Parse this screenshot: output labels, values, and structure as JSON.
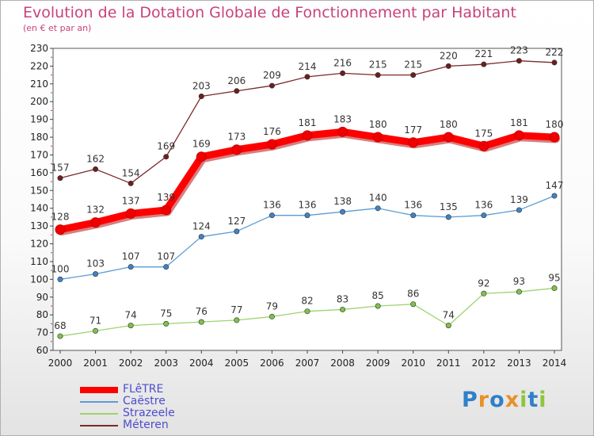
{
  "chart_data": {
    "type": "line",
    "title": "Evolution de la Dotation Globale de Fonctionnement par Habitant",
    "subtitle": "(en € et par an)",
    "xlabel": "",
    "ylabel": "",
    "ylim": [
      60,
      230
    ],
    "ytick_step": 10,
    "grid": false,
    "legend_position": "bottom-left",
    "x": [
      2000,
      2001,
      2002,
      2003,
      2004,
      2005,
      2006,
      2007,
      2008,
      2009,
      2010,
      2011,
      2012,
      2013,
      2014
    ],
    "series": [
      {
        "name": "Méteren",
        "color": "#7a2a2a",
        "marker": "#6e1e1e",
        "style": "thin",
        "values": [
          157,
          162,
          154,
          169,
          203,
          206,
          209,
          214,
          216,
          215,
          215,
          220,
          221,
          223,
          222
        ]
      },
      {
        "name": "Strazeele",
        "color": "#9ed36e",
        "marker": "#7fc24a",
        "style": "thin",
        "values": [
          68,
          71,
          74,
          75,
          76,
          77,
          79,
          82,
          83,
          85,
          86,
          74,
          92,
          93,
          95
        ]
      },
      {
        "name": "Caëstre",
        "color": "#5b9bd5",
        "marker": "#3f83c4",
        "style": "thin",
        "values": [
          100,
          103,
          107,
          107,
          124,
          127,
          136,
          136,
          138,
          140,
          136,
          135,
          136,
          139,
          147
        ]
      },
      {
        "name": "FLêTRE",
        "color": "#ff0000",
        "marker": "#ee0000",
        "style": "thick",
        "values": [
          128,
          132,
          137,
          139,
          169,
          173,
          176,
          181,
          183,
          180,
          177,
          180,
          175,
          181,
          180
        ]
      }
    ]
  },
  "legend": {
    "items": [
      {
        "label": "FLêTRE",
        "color": "#ff0000",
        "text_color": "#4d4dd1",
        "thick": true
      },
      {
        "label": "Caëstre",
        "color": "#5b9bd5",
        "text_color": "#4d4dd1",
        "thick": false
      },
      {
        "label": "Strazeele",
        "color": "#9ed36e",
        "text_color": "#4d4dd1",
        "thick": false
      },
      {
        "label": "Méteren",
        "color": "#7a2a2a",
        "text_color": "#4d4dd1",
        "thick": false
      }
    ]
  },
  "logo": {
    "letters": [
      "P",
      "r",
      "o",
      "x",
      "i",
      "t",
      "i"
    ],
    "colors": [
      "#2f80c8",
      "#e8912a",
      "#2f80c8",
      "#e8912a",
      "#8cc63f",
      "#2f80c8",
      "#8cc63f"
    ]
  }
}
